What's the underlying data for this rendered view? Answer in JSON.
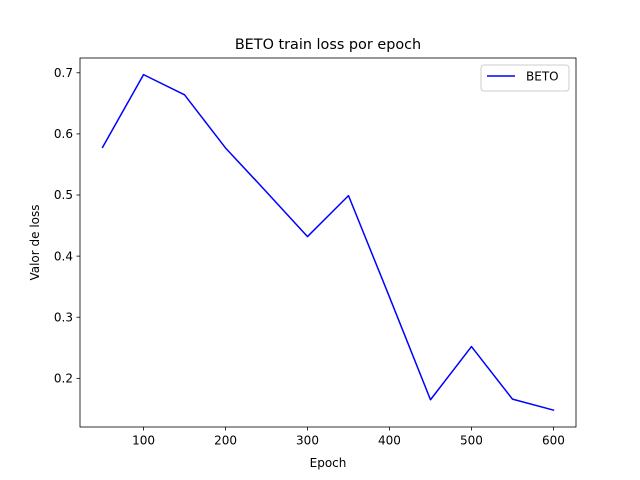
{
  "chart_data": {
    "type": "line",
    "title": "BETO train loss por epoch",
    "xlabel": "Epoch",
    "ylabel": "Valor de loss",
    "xlim": [
      22.5,
      627.5
    ],
    "ylim": [
      0.1204,
      0.7242
    ],
    "xticks": [
      100,
      200,
      300,
      400,
      500,
      600
    ],
    "yticks": [
      0.2,
      0.3,
      0.4,
      0.5,
      0.6,
      0.7
    ],
    "grid": false,
    "legend_position": "top-right",
    "series": [
      {
        "name": "BETO",
        "color": "#0000ff",
        "x": [
          50,
          100,
          150,
          200,
          250,
          300,
          350,
          400,
          450,
          500,
          550,
          600
        ],
        "y": [
          0.578,
          0.697,
          0.664,
          0.577,
          0.505,
          0.432,
          0.499,
          0.333,
          0.165,
          0.252,
          0.166,
          0.148
        ]
      }
    ]
  }
}
